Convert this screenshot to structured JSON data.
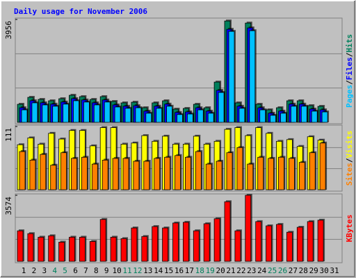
{
  "chart_data": [
    {
      "type": "bar",
      "title": "Daily usage for November 2006",
      "legend_separator": "/",
      "ylim": [
        0,
        3956
      ],
      "yticks": [
        3956
      ],
      "series": [
        {
          "name": "Hits",
          "color": "#00805c",
          "values": [
            694,
            961,
            881,
            828,
            908,
            1041,
            988,
            881,
            988,
            801,
            748,
            774,
            561,
            748,
            828,
            507,
            534,
            694,
            561,
            1548,
            3898,
            748,
            3818,
            694,
            481,
            561,
            828,
            828,
            641,
            614,
            null
          ]
        },
        {
          "name": "Files",
          "color": "#0000ff",
          "values": [
            560,
            830,
            750,
            700,
            780,
            910,
            860,
            750,
            860,
            670,
            620,
            640,
            430,
            620,
            700,
            380,
            400,
            560,
            430,
            1228,
            3578,
            620,
            3631,
            560,
            350,
            430,
            700,
            700,
            510,
            480,
            null
          ]
        },
        {
          "name": "Pages",
          "color": "#00c0ff",
          "values": [
            480,
            750,
            670,
            620,
            700,
            830,
            780,
            670,
            780,
            590,
            540,
            560,
            350,
            540,
            620,
            300,
            320,
            480,
            350,
            1148,
            3498,
            540,
            3524,
            480,
            270,
            350,
            620,
            620,
            430,
            400,
            null
          ]
        }
      ]
    },
    {
      "type": "bar",
      "ylim": [
        0,
        111
      ],
      "yticks": [
        111
      ],
      "series": [
        {
          "name": "Visits",
          "color": "#ffff00",
          "values": [
            79,
            91,
            80,
            99,
            89,
            104,
            104,
            77,
            109,
            109,
            80,
            82,
            95,
            85,
            94,
            80,
            80,
            94,
            80,
            85,
            106,
            109,
            95,
            109,
            99,
            85,
            88,
            76,
            93,
            87,
            null
          ]
        },
        {
          "name": "Sites",
          "color": "#ff8000",
          "values": [
            67,
            52,
            62,
            43,
            65,
            55,
            57,
            45,
            52,
            55,
            55,
            50,
            50,
            55,
            57,
            60,
            57,
            67,
            45,
            50,
            65,
            74,
            45,
            57,
            55,
            57,
            55,
            48,
            65,
            82,
            null
          ]
        }
      ]
    },
    {
      "type": "bar",
      "ylim": [
        0,
        3574
      ],
      "yticks": [
        3574
      ],
      "categories": [
        "1",
        "2",
        "3",
        "4",
        "5",
        "6",
        "7",
        "8",
        "9",
        "10",
        "11",
        "12",
        "13",
        "14",
        "15",
        "16",
        "17",
        "18",
        "19",
        "20",
        "21",
        "22",
        "23",
        "24",
        "25",
        "26",
        "27",
        "28",
        "29",
        "30",
        "31"
      ],
      "category_colors": [
        "#000000",
        "#000000",
        "#000000",
        "#00805c",
        "#00805c",
        "#000000",
        "#000000",
        "#000000",
        "#000000",
        "#000000",
        "#00805c",
        "#00805c",
        "#000000",
        "#000000",
        "#000000",
        "#000000",
        "#000000",
        "#00805c",
        "#00805c",
        "#000000",
        "#000000",
        "#000000",
        "#000000",
        "#000000",
        "#00805c",
        "#00805c",
        "#000000",
        "#000000",
        "#000000",
        "#000000",
        "#000000"
      ],
      "series": [
        {
          "name": "KBytes",
          "color": "#ff0000",
          "values": [
            1651,
            1498,
            1306,
            1382,
            1037,
            1306,
            1306,
            1075,
            2266,
            1306,
            1229,
            1805,
            1344,
            1882,
            1805,
            2074,
            2112,
            1651,
            2035,
            2304,
            3226,
            1651,
            3574,
            2150,
            1920,
            1997,
            1574,
            1843,
            2150,
            2227,
            null
          ]
        }
      ]
    }
  ]
}
